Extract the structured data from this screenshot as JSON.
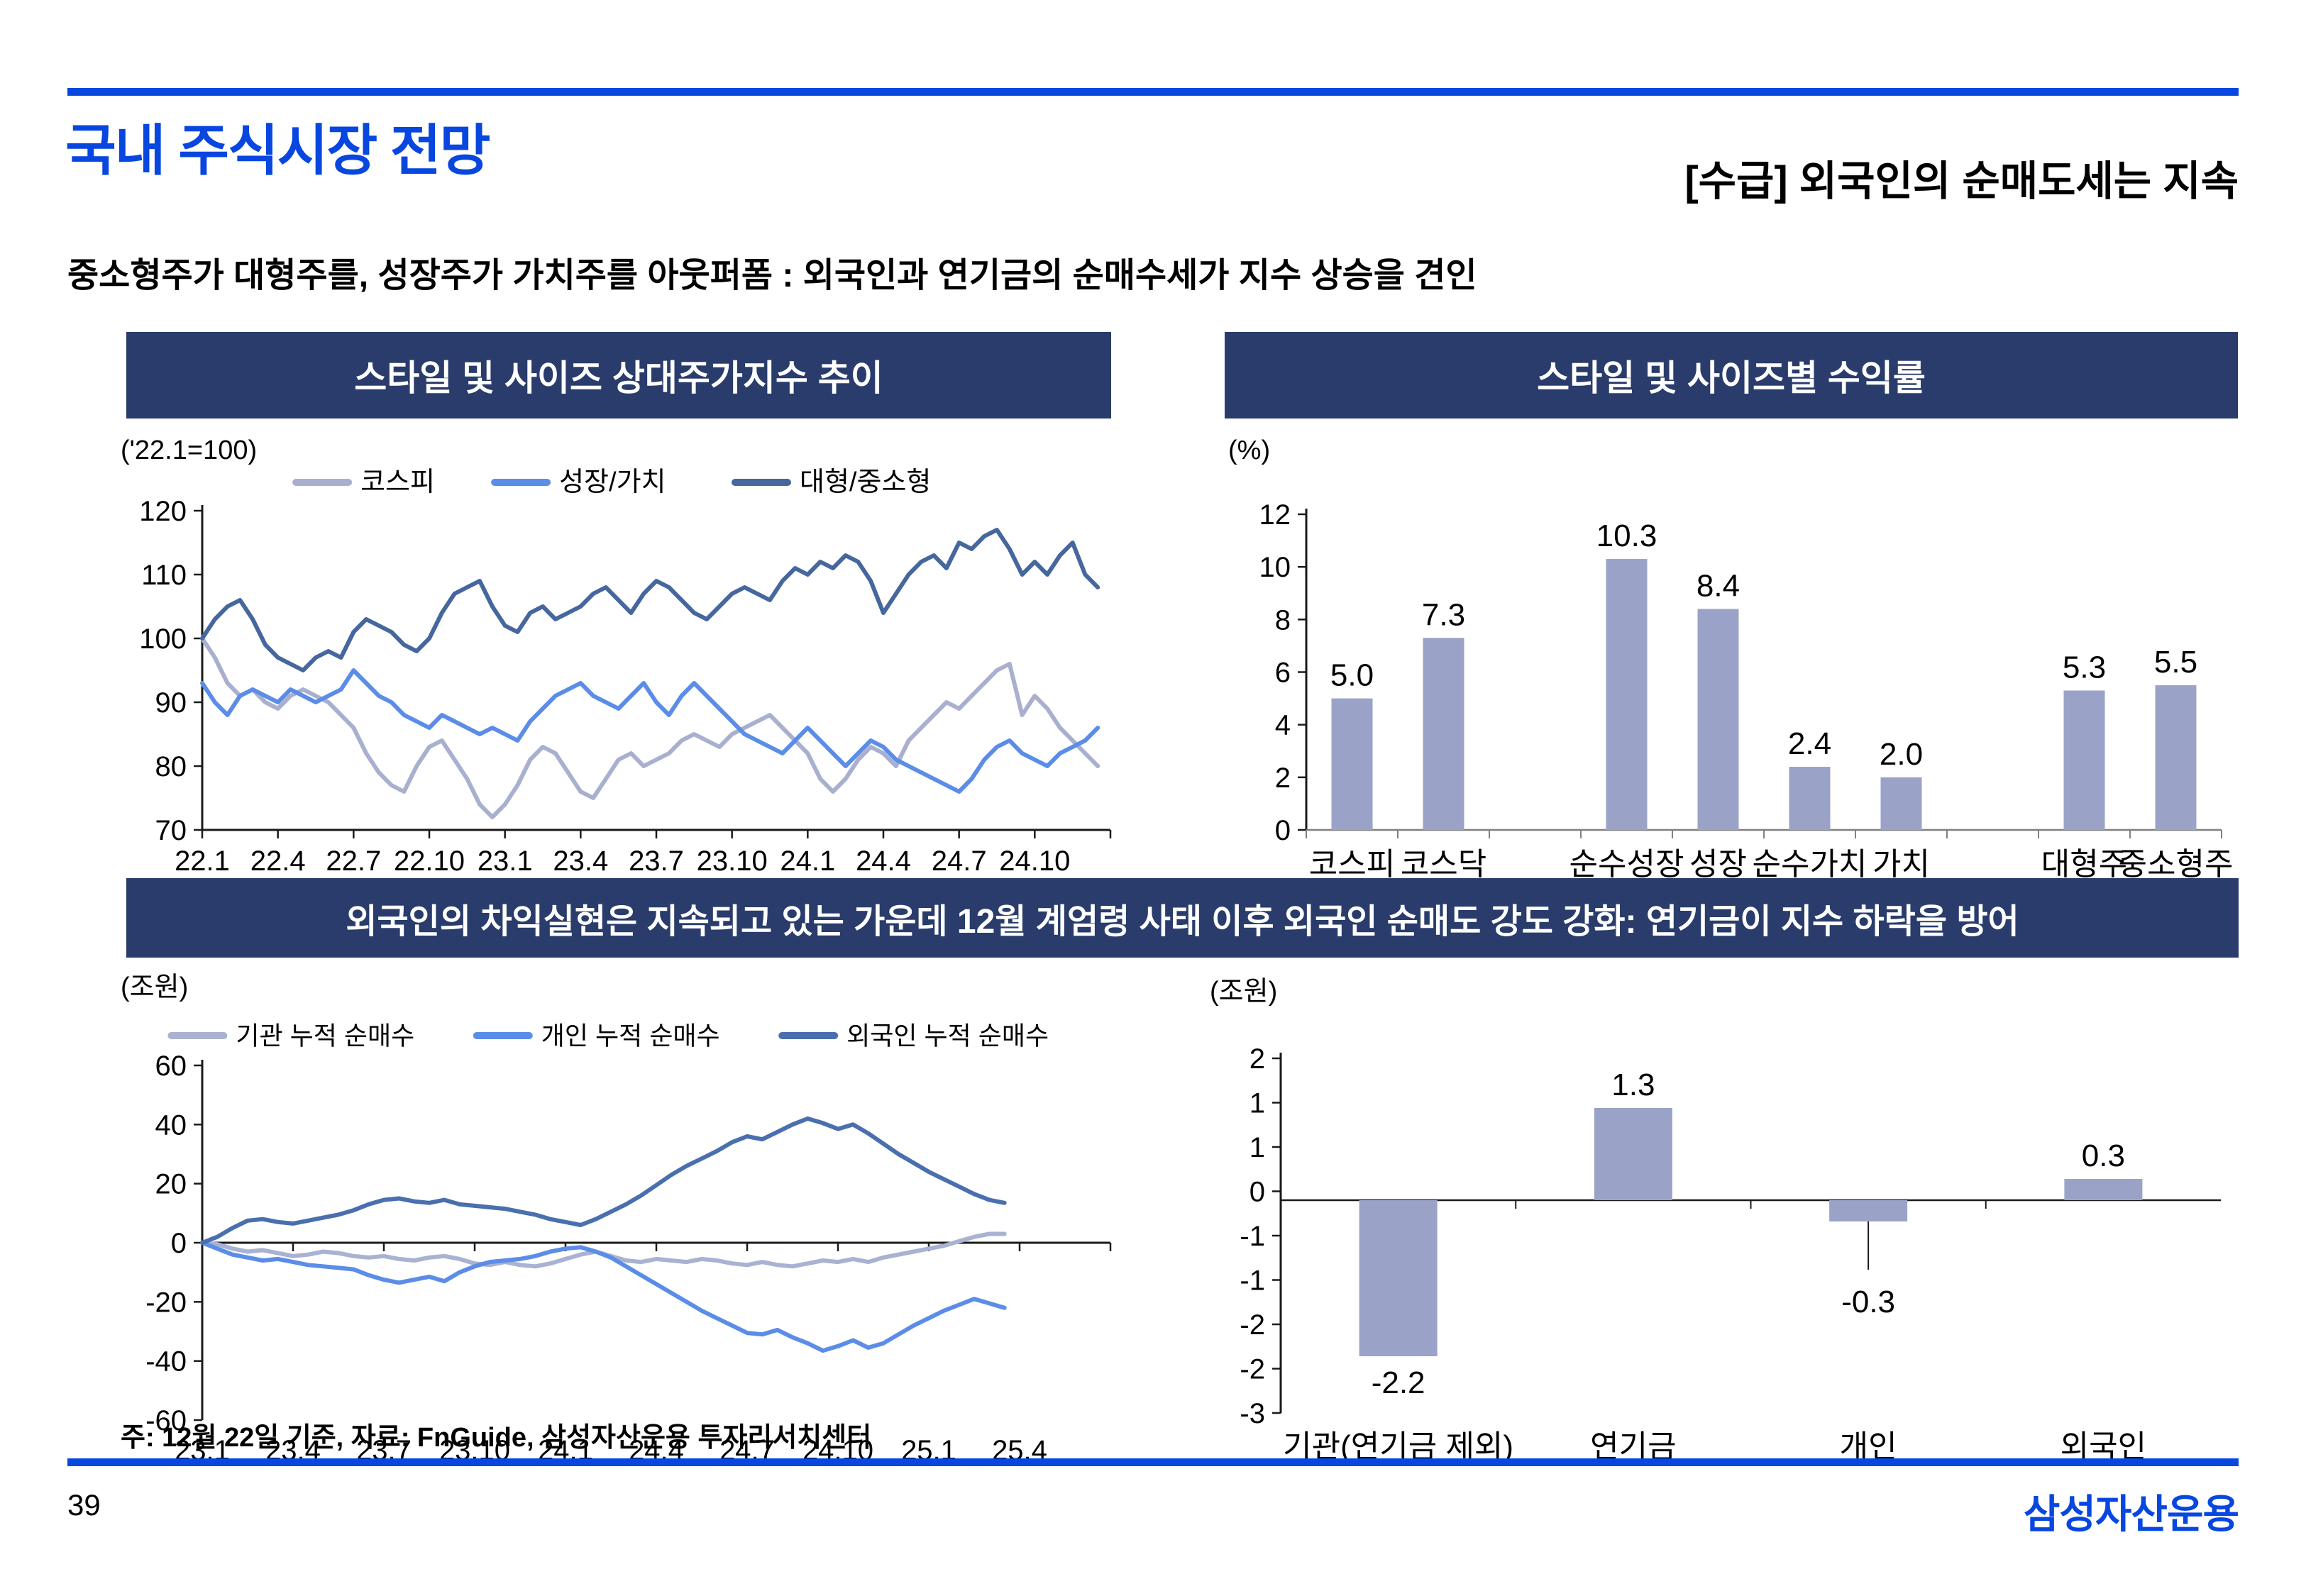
{
  "slide": {
    "title": "국내 주식시장 전망",
    "header_right": "[수급] 외국인의 순매도세는 지속",
    "subtitle": "중소형주가 대형주를, 성장주가 가치주를 아웃퍼폼 : 외국인과 연기금의 순매수세가 지수 상승을 견인",
    "banner": "외국인의 차익실현은 지속되고 있는 가운데 12월 계엄령 사태 이후 외국인 순매도 강도 강화: 연기금이 지수 하락을 방어",
    "footnote": "주: 12월 22일 기준, 자료: FnGuide, 삼성자산운용 투자리서치센터",
    "page_number": "39",
    "logo": "삼성자산운용",
    "colors": {
      "accent_blue": "#0846e0",
      "band_navy": "#293c6b",
      "axis_black": "#1a1a1a",
      "axis_gray": "#808080",
      "bar_fill": "#9aa3c7"
    }
  },
  "chart_data": [
    {
      "id": "style-size-relative-index",
      "type": "line",
      "title": "스타일 및 사이즈 상대주가지수 추이",
      "unit": "('22.1=100)",
      "ylim": [
        70,
        120
      ],
      "y_ticks": [
        120,
        110,
        100,
        90,
        80,
        70
      ],
      "x_axis_value": 70,
      "x_months_domain": 36,
      "x_tick_step": 3,
      "months_per_point": 0.5,
      "x_tick_labels": [
        "22.1",
        "22.4",
        "22.7",
        "22.10",
        "23.1",
        "23.4",
        "23.7",
        "23.10",
        "24.1",
        "24.4",
        "24.7",
        "24.10"
      ],
      "legend_position": "top",
      "series": [
        {
          "name": "코스피",
          "color": "#a9b0cf",
          "values": [
            100,
            97,
            93,
            91,
            92,
            90,
            89,
            91,
            92,
            91,
            90,
            88,
            86,
            82,
            79,
            77,
            76,
            80,
            83,
            84,
            81,
            78,
            74,
            72,
            74,
            77,
            81,
            83,
            82,
            79,
            76,
            75,
            78,
            81,
            82,
            80,
            81,
            82,
            84,
            85,
            84,
            83,
            85,
            86,
            87,
            88,
            86,
            84,
            82,
            78,
            76,
            78,
            81,
            83,
            82,
            80,
            84,
            86,
            88,
            90,
            89,
            91,
            93,
            95,
            96,
            88,
            91,
            89,
            86,
            84,
            82,
            80
          ]
        },
        {
          "name": "성장/가치",
          "color": "#5b8de8",
          "values": [
            93,
            90,
            88,
            91,
            92,
            91,
            90,
            92,
            91,
            90,
            91,
            92,
            95,
            93,
            91,
            90,
            88,
            87,
            86,
            88,
            87,
            86,
            85,
            86,
            85,
            84,
            87,
            89,
            91,
            92,
            93,
            91,
            90,
            89,
            91,
            93,
            90,
            88,
            91,
            93,
            91,
            89,
            87,
            85,
            84,
            83,
            82,
            84,
            86,
            84,
            82,
            80,
            82,
            84,
            83,
            81,
            80,
            79,
            78,
            77,
            76,
            78,
            81,
            83,
            84,
            82,
            81,
            80,
            82,
            83,
            84,
            86
          ]
        },
        {
          "name": "대형/중소형",
          "color": "#46679e",
          "values": [
            100,
            103,
            105,
            106,
            103,
            99,
            97,
            96,
            95,
            97,
            98,
            97,
            101,
            103,
            102,
            101,
            99,
            98,
            100,
            104,
            107,
            108,
            109,
            105,
            102,
            101,
            104,
            105,
            103,
            104,
            105,
            107,
            108,
            106,
            104,
            107,
            109,
            108,
            106,
            104,
            103,
            105,
            107,
            108,
            107,
            106,
            109,
            111,
            110,
            112,
            111,
            113,
            112,
            109,
            104,
            107,
            110,
            112,
            113,
            111,
            115,
            114,
            116,
            117,
            114,
            110,
            112,
            110,
            113,
            115,
            110,
            108
          ]
        }
      ]
    },
    {
      "id": "style-size-returns",
      "type": "bar",
      "title": "스타일 및 사이즈별 수익률",
      "unit": "(%)",
      "ylim": [
        0,
        12
      ],
      "y_ticks": [
        12,
        10,
        8,
        6,
        4,
        2,
        0
      ],
      "slot_count": 10,
      "categories": [
        "코스피",
        "코스닥",
        "순수성장",
        "성장",
        "순수가치",
        "가치",
        "대형주",
        "중소형주"
      ],
      "slots": [
        0,
        1,
        3,
        4,
        5,
        6,
        8,
        9
      ],
      "values": [
        5.0,
        7.3,
        10.3,
        8.4,
        2.4,
        2.0,
        5.3,
        5.5
      ],
      "labels": [
        "5.0",
        "7.3",
        "10.3",
        "8.4",
        "2.4",
        "2.0",
        "5.3",
        "5.5"
      ]
    },
    {
      "id": "cumulative-net-buying",
      "type": "line",
      "unit": "(조원)",
      "ylim": [
        -60,
        60
      ],
      "y_ticks": [
        60,
        40,
        20,
        0,
        -20,
        -40,
        -60
      ],
      "x_axis_value": 0,
      "x_months_domain": 30,
      "x_tick_step": 3,
      "months_per_point": 0.5,
      "x_tick_labels": [
        "23.1",
        "23.4",
        "23.7",
        "23.10",
        "24.1",
        "24.4",
        "24.7",
        "24.10",
        "25.1",
        "25.4"
      ],
      "legend_position": "top",
      "series": [
        {
          "name": "기관 누적 순매수",
          "color": "#a9b2d2",
          "values": [
            0,
            -0.5,
            -2,
            -3,
            -2.5,
            -3.5,
            -4.5,
            -4,
            -3,
            -3.5,
            -4.5,
            -5,
            -4.5,
            -5.5,
            -6,
            -5,
            -4.5,
            -5.5,
            -7,
            -7.5,
            -6.5,
            -7.5,
            -8,
            -7,
            -5.5,
            -4,
            -3,
            -4.5,
            -6,
            -6.5,
            -5.5,
            -6,
            -6.5,
            -5.5,
            -6,
            -7,
            -7.5,
            -6.5,
            -7.5,
            -8,
            -7,
            -6,
            -6.5,
            -5.5,
            -6.5,
            -5,
            -4,
            -3,
            -2,
            -1,
            0.5,
            2,
            3,
            3
          ]
        },
        {
          "name": "개인 누적 순매수",
          "color": "#5b8de8",
          "values": [
            0,
            -2,
            -4,
            -5,
            -6,
            -5.5,
            -6.5,
            -7.5,
            -8,
            -8.5,
            -9,
            -11,
            -12.5,
            -13.5,
            -12.5,
            -11.5,
            -13,
            -10,
            -8,
            -6.5,
            -6,
            -5.5,
            -4.5,
            -3,
            -2,
            -1.5,
            -3,
            -5,
            -8,
            -11,
            -14,
            -17,
            -20,
            -23,
            -25.5,
            -28,
            -30.5,
            -31,
            -29.5,
            -32,
            -34,
            -36.5,
            -35,
            -33,
            -35.5,
            -34,
            -31,
            -28,
            -25.5,
            -23,
            -21,
            -19,
            -20.5,
            -22
          ]
        },
        {
          "name": "외국인 누적 순매수",
          "color": "#4a6fae",
          "values": [
            0,
            2,
            5,
            7.5,
            8,
            7,
            6.5,
            7.5,
            8.5,
            9.5,
            11,
            13,
            14.5,
            15,
            14,
            13.5,
            14.5,
            13,
            12.5,
            12,
            11.5,
            10.5,
            9.5,
            8,
            7,
            6,
            8,
            10.5,
            13,
            16,
            19.5,
            23,
            26,
            28.5,
            31,
            34,
            36,
            35,
            37.5,
            40,
            42,
            40.5,
            38.5,
            40,
            37,
            33.5,
            30,
            27,
            24,
            21.5,
            19,
            16.5,
            14.5,
            13.5
          ]
        }
      ]
    },
    {
      "id": "net-buying-by-investor",
      "type": "bar",
      "unit": "(조원)",
      "ylim": [
        -3,
        2
      ],
      "y_tick_labels": [
        "2",
        "1",
        "1",
        "0",
        "-1",
        "-1",
        "-2",
        "-2",
        "-3"
      ],
      "slot_count": 4,
      "categories": [
        "기관(연기금 제외)",
        "연기금",
        "개인",
        "외국인"
      ],
      "slots": [
        0,
        1,
        2,
        3
      ],
      "values": [
        -2.2,
        1.3,
        -0.3,
        0.3
      ],
      "labels": [
        "-2.2",
        "1.3",
        "-0.3",
        "0.3"
      ],
      "leader_lines": [
        false,
        false,
        true,
        false
      ]
    }
  ]
}
